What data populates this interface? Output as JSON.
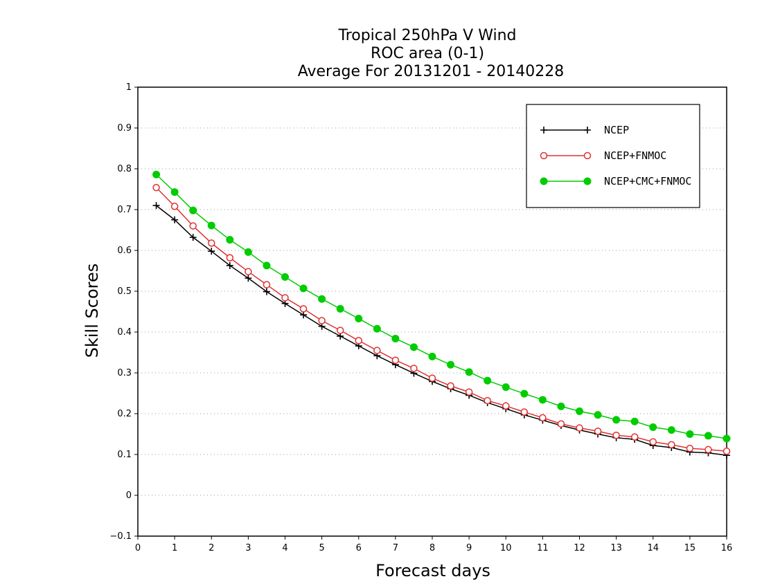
{
  "chart_data": {
    "type": "line",
    "title_lines": [
      "Tropical 250hPa V Wind",
      "ROC area (0-1)",
      "Average For 20131201 - 20140228"
    ],
    "xlabel": "Forecast days",
    "ylabel": "Skill Scores",
    "xlim": [
      0,
      16
    ],
    "ylim": [
      -0.1,
      1
    ],
    "x_ticks": [
      "0",
      "1",
      "2",
      "3",
      "4",
      "5",
      "6",
      "7",
      "8",
      "9",
      "10",
      "11",
      "12",
      "13",
      "14",
      "15",
      "16"
    ],
    "y_ticks": [
      "−0.1",
      "0",
      "0.1",
      "0.2",
      "0.3",
      "0.4",
      "0.5",
      "0.6",
      "0.7",
      "0.8",
      "0.9",
      "1"
    ],
    "grid": true,
    "legend_position": "top-right",
    "x": [
      0.5,
      1,
      1.5,
      2,
      2.5,
      3,
      3.5,
      4,
      4.5,
      5,
      5.5,
      6,
      6.5,
      7,
      7.5,
      8,
      8.5,
      9,
      9.5,
      10,
      10.5,
      11,
      11.5,
      12,
      12.5,
      13,
      13.5,
      14,
      14.5,
      15,
      15.5,
      16
    ],
    "series": [
      {
        "name": "NCEP",
        "color": "#000000",
        "marker": "plus",
        "values": [
          0.71,
          0.675,
          0.632,
          0.598,
          0.563,
          0.532,
          0.499,
          0.47,
          0.442,
          0.414,
          0.39,
          0.366,
          0.342,
          0.32,
          0.299,
          0.279,
          0.261,
          0.245,
          0.227,
          0.212,
          0.197,
          0.184,
          0.171,
          0.16,
          0.15,
          0.141,
          0.137,
          0.122,
          0.117,
          0.106,
          0.104,
          0.098
        ]
      },
      {
        "name": "NCEP+FNMOC",
        "color": "#e03030",
        "marker": "open-circle",
        "values": [
          0.754,
          0.708,
          0.66,
          0.618,
          0.582,
          0.548,
          0.516,
          0.484,
          0.457,
          0.428,
          0.404,
          0.379,
          0.355,
          0.331,
          0.311,
          0.287,
          0.268,
          0.253,
          0.232,
          0.219,
          0.204,
          0.19,
          0.175,
          0.165,
          0.157,
          0.147,
          0.143,
          0.131,
          0.124,
          0.115,
          0.112,
          0.108
        ]
      },
      {
        "name": "NCEP+CMC+FNMOC",
        "color": "#00cc00",
        "marker": "filled-circle",
        "values": [
          0.786,
          0.743,
          0.698,
          0.661,
          0.626,
          0.596,
          0.563,
          0.535,
          0.507,
          0.481,
          0.457,
          0.433,
          0.408,
          0.384,
          0.363,
          0.34,
          0.32,
          0.302,
          0.281,
          0.265,
          0.249,
          0.234,
          0.218,
          0.206,
          0.197,
          0.185,
          0.181,
          0.167,
          0.16,
          0.15,
          0.146,
          0.139
        ]
      }
    ]
  }
}
